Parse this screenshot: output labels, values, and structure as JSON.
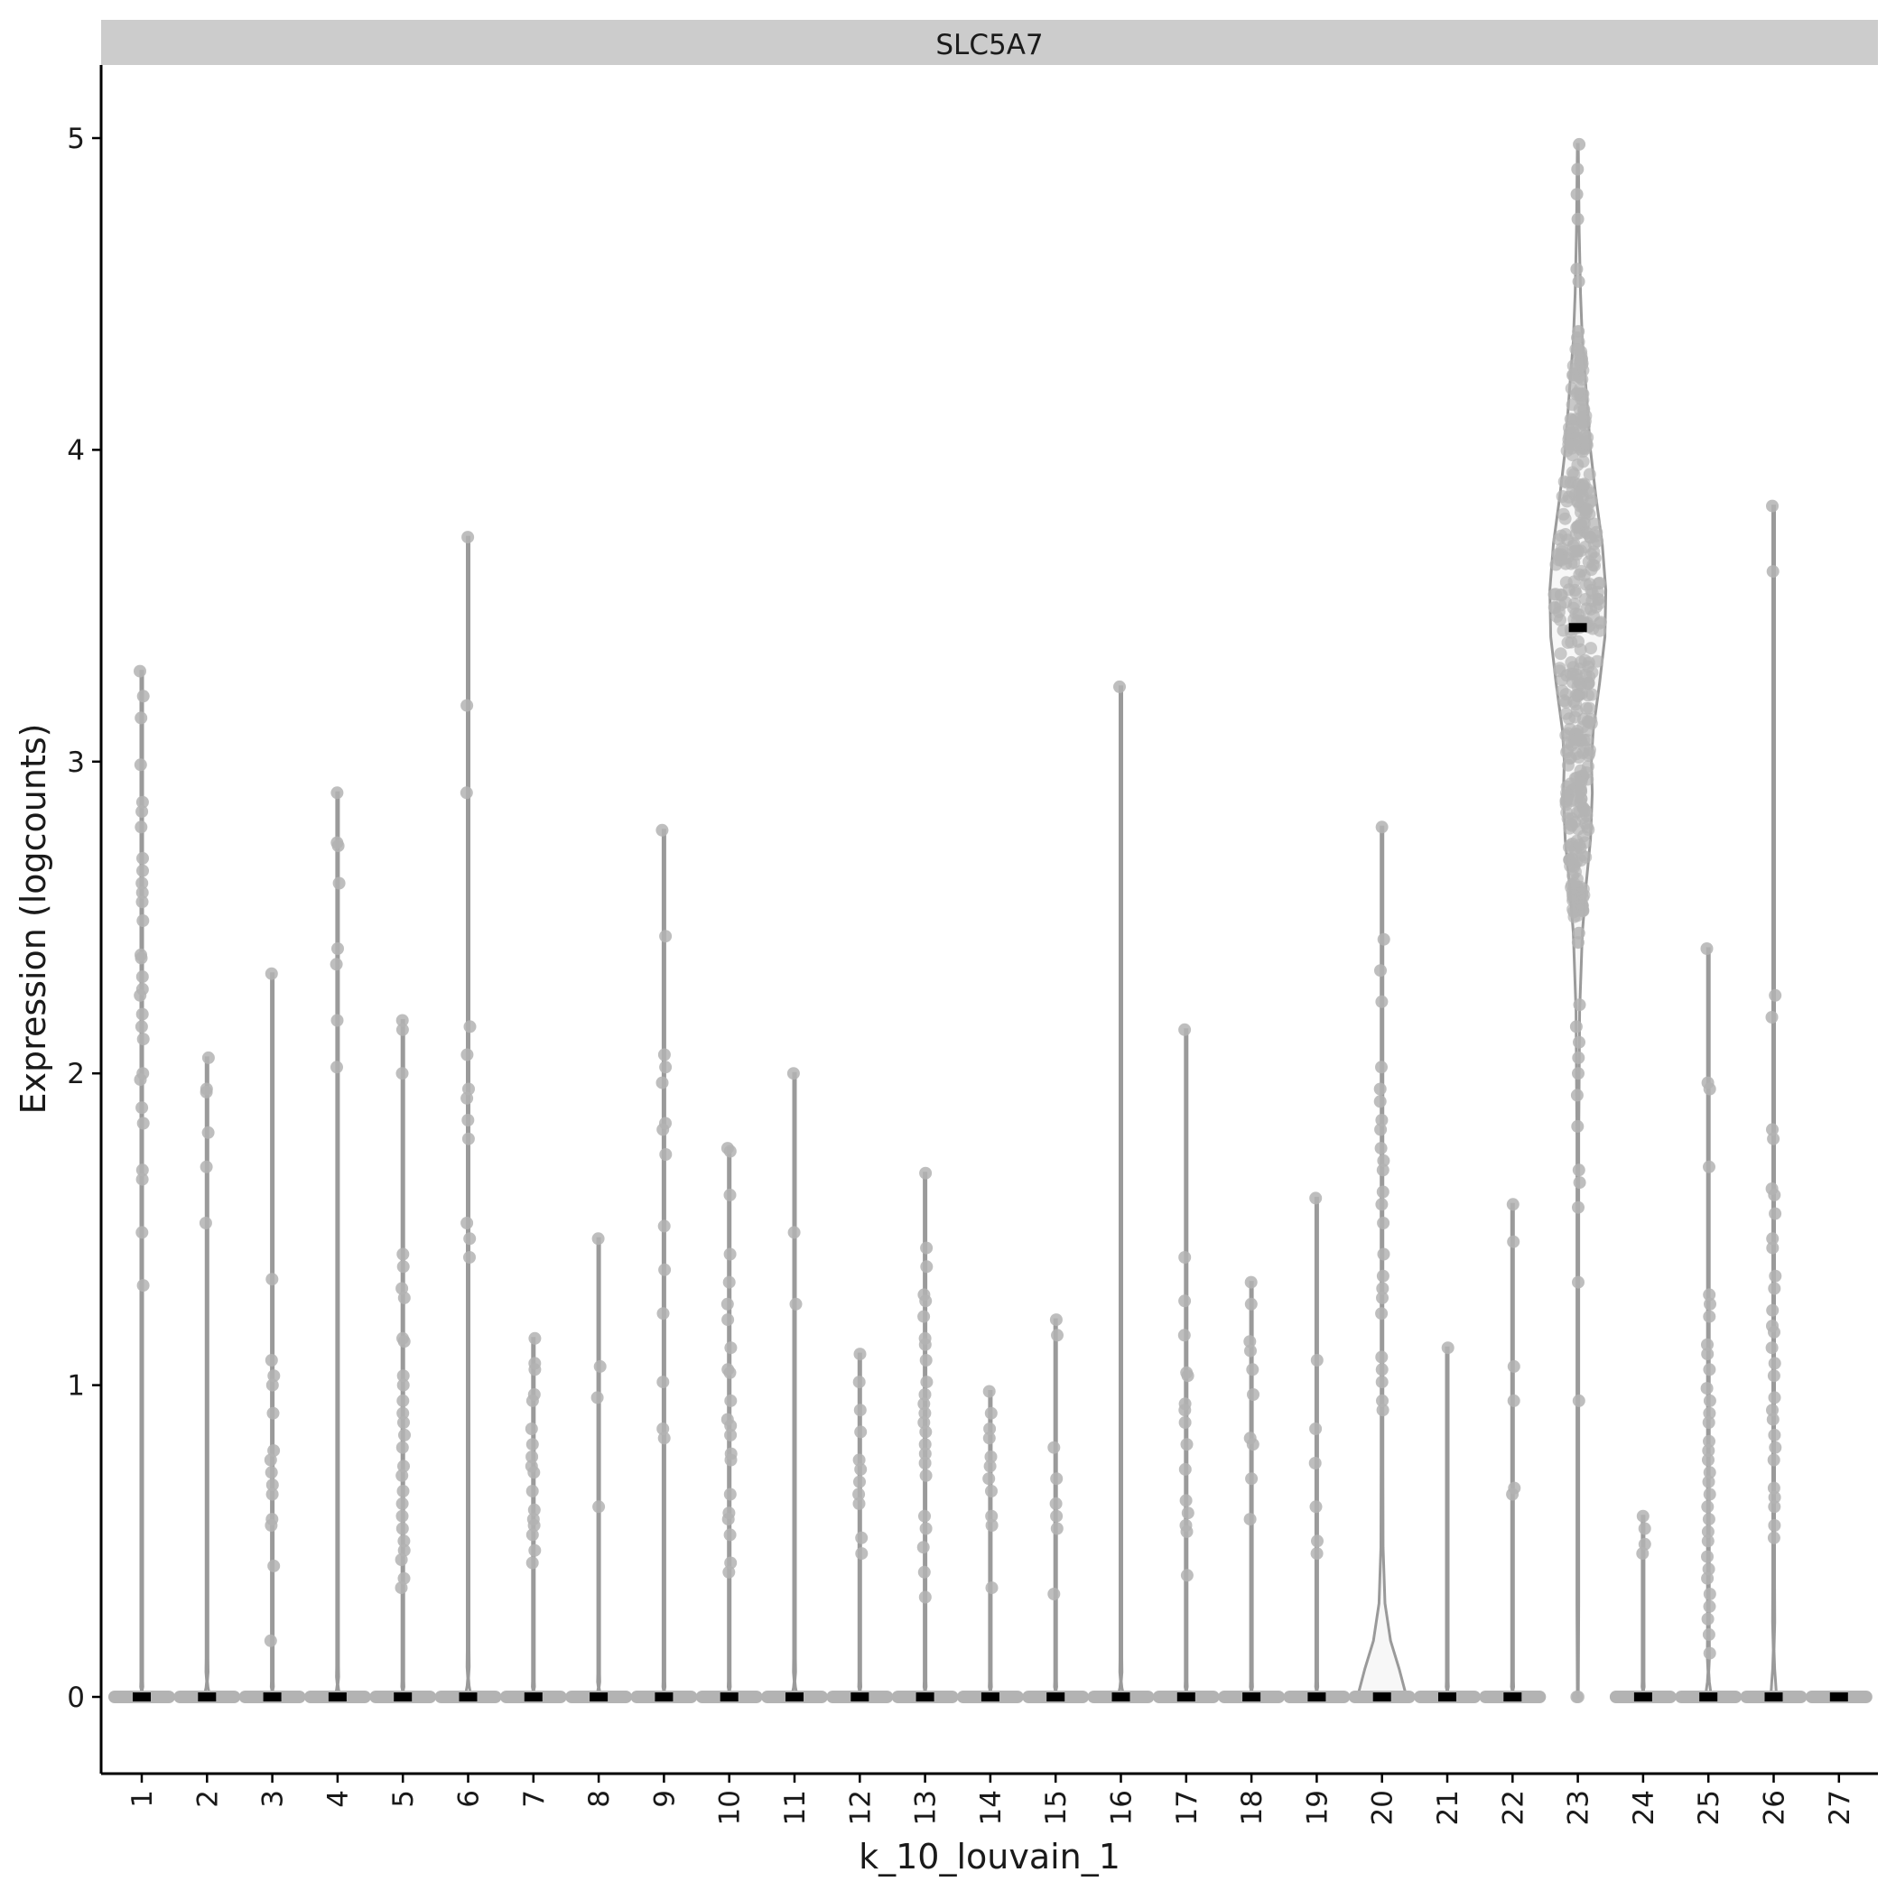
{
  "chart_data": {
    "type": "violin",
    "title": "SLC5A7",
    "xlabel": "k_10_louvain_1",
    "ylabel": "Expression (logcounts)",
    "ylim": [
      -0.25,
      5.25
    ],
    "yticks": [
      0,
      1,
      2,
      3,
      4,
      5
    ],
    "grid": false,
    "colors": {
      "violin": "#9a9a9a",
      "points": "#b3b3b3",
      "median": "#000000",
      "strip": "#cccccc"
    },
    "categories": [
      "1",
      "2",
      "3",
      "4",
      "5",
      "6",
      "7",
      "8",
      "9",
      "10",
      "11",
      "12",
      "13",
      "14",
      "15",
      "16",
      "17",
      "18",
      "19",
      "20",
      "21",
      "22",
      "23",
      "24",
      "25",
      "26",
      "27"
    ],
    "max": [
      3.29,
      2.05,
      2.32,
      2.9,
      2.17,
      3.72,
      1.15,
      1.47,
      2.78,
      1.76,
      2.0,
      1.1,
      1.68,
      0.98,
      1.21,
      3.24,
      2.14,
      1.33,
      1.6,
      2.79,
      1.12,
      1.58,
      4.98,
      0.58,
      2.4,
      3.82,
      0
    ],
    "median": [
      0,
      0,
      0,
      0,
      0,
      0,
      0,
      0,
      0,
      0,
      0,
      0,
      0,
      0,
      0,
      0,
      0,
      0,
      0,
      0,
      0,
      0,
      3.43,
      0,
      0,
      0,
      0
    ],
    "nonzero_points": [
      [
        3.29,
        3.21,
        3.14,
        2.99,
        2.87,
        2.84,
        2.79,
        2.69,
        2.65,
        2.61,
        2.58,
        2.55,
        2.49,
        2.38,
        2.37,
        2.31,
        2.27,
        2.25,
        2.19,
        2.15,
        2.11,
        2.0,
        1.98,
        1.89,
        1.84,
        1.69,
        1.66,
        1.49,
        1.32
      ],
      [
        2.05,
        1.95,
        1.94,
        1.81,
        1.7,
        1.52
      ],
      [
        2.32,
        1.34,
        1.08,
        1.03,
        1.0,
        0.91,
        0.79,
        0.76,
        0.72,
        0.68,
        0.65,
        0.57,
        0.55,
        0.42,
        0.18
      ],
      [
        2.9,
        2.74,
        2.73,
        2.61,
        2.4,
        2.35,
        2.17,
        2.02
      ],
      [
        2.17,
        2.14,
        2.0,
        1.42,
        1.38,
        1.31,
        1.28,
        1.15,
        1.14,
        1.03,
        1.0,
        0.95,
        0.91,
        0.88,
        0.84,
        0.8,
        0.74,
        0.71,
        0.66,
        0.62,
        0.58,
        0.54,
        0.5,
        0.47,
        0.44,
        0.38,
        0.35
      ],
      [
        3.72,
        3.18,
        2.9,
        2.15,
        2.06,
        1.95,
        1.92,
        1.85,
        1.79,
        1.52,
        1.47,
        1.41
      ],
      [
        1.15,
        1.07,
        1.05,
        0.97,
        0.95,
        0.86,
        0.81,
        0.77,
        0.74,
        0.72,
        0.66,
        0.6,
        0.57,
        0.55,
        0.52,
        0.47,
        0.43
      ],
      [
        1.47,
        1.06,
        0.96,
        0.61
      ],
      [
        2.78,
        2.44,
        2.06,
        2.02,
        1.97,
        1.84,
        1.82,
        1.74,
        1.51,
        1.37,
        1.23,
        1.01,
        0.86,
        0.83
      ],
      [
        1.76,
        1.75,
        1.61,
        1.42,
        1.33,
        1.26,
        1.21,
        1.12,
        1.05,
        1.04,
        0.95,
        0.89,
        0.87,
        0.84,
        0.78,
        0.76,
        0.65,
        0.59,
        0.57,
        0.52,
        0.43,
        0.4
      ],
      [
        2.0,
        1.49,
        1.26
      ],
      [
        1.1,
        1.01,
        0.92,
        0.85,
        0.76,
        0.73,
        0.69,
        0.65,
        0.62,
        0.51,
        0.46
      ],
      [
        1.68,
        1.44,
        1.38,
        1.29,
        1.27,
        1.22,
        1.15,
        1.13,
        1.08,
        1.01,
        0.97,
        0.94,
        0.91,
        0.88,
        0.85,
        0.81,
        0.78,
        0.75,
        0.71,
        0.58,
        0.54,
        0.48,
        0.4,
        0.32
      ],
      [
        0.98,
        0.91,
        0.86,
        0.83,
        0.77,
        0.74,
        0.7,
        0.66,
        0.58,
        0.55,
        0.35
      ],
      [
        1.21,
        1.16,
        0.8,
        0.7,
        0.62,
        0.58,
        0.54,
        0.33
      ],
      [
        3.24
      ],
      [
        2.14,
        1.41,
        1.27,
        1.16,
        1.04,
        1.03,
        0.94,
        0.92,
        0.88,
        0.81,
        0.73,
        0.63,
        0.59,
        0.55,
        0.53,
        0.39
      ],
      [
        1.33,
        1.26,
        1.14,
        1.11,
        1.05,
        0.97,
        0.83,
        0.81,
        0.7,
        0.57
      ],
      [
        1.6,
        1.08,
        0.86,
        0.75,
        0.61,
        0.5,
        0.46
      ],
      [
        2.79,
        2.43,
        2.33,
        2.23,
        2.02,
        1.95,
        1.91,
        1.85,
        1.82,
        1.76,
        1.72,
        1.69,
        1.62,
        1.58,
        1.52,
        1.42,
        1.35,
        1.31,
        1.28,
        1.23,
        1.09,
        1.05,
        1.01,
        0.95,
        0.92
      ],
      [
        1.12
      ],
      [
        1.58,
        1.46,
        1.06,
        0.95,
        0.67,
        0.65
      ],
      [],
      [
        0.58,
        0.54,
        0.49,
        0.46
      ],
      [
        2.4,
        1.97,
        1.95,
        1.7,
        1.29,
        1.26,
        1.22,
        1.13,
        1.1,
        1.05,
        0.99,
        0.95,
        0.91,
        0.88,
        0.82,
        0.79,
        0.76,
        0.72,
        0.69,
        0.65,
        0.61,
        0.57,
        0.53,
        0.5,
        0.45,
        0.41,
        0.38,
        0.33,
        0.29,
        0.25,
        0.2,
        0.14
      ],
      [
        3.82,
        3.61,
        2.25,
        2.18,
        1.82,
        1.79,
        1.63,
        1.61,
        1.55,
        1.47,
        1.44,
        1.35,
        1.31,
        1.24,
        1.19,
        1.17,
        1.12,
        1.07,
        1.03,
        0.96,
        0.92,
        0.89,
        0.84,
        0.8,
        0.76,
        0.67,
        0.64,
        0.61,
        0.55,
        0.51
      ],
      []
    ],
    "violin_width_at_zero": [
      0.1,
      0.1,
      0.1,
      0.1,
      0.1,
      0.1,
      0.1,
      0.1,
      0.1,
      0.1,
      0.1,
      0.1,
      0.1,
      0.1,
      0.1,
      0.1,
      0.1,
      0.1,
      0.1,
      0.85,
      0.1,
      0.1,
      0.02,
      0.1,
      0.1,
      0.1,
      0.1
    ],
    "zero_bulge": [
      0.02,
      0.05,
      0.02,
      0.04,
      0.02,
      0.06,
      0.02,
      0.03,
      0.02,
      0.02,
      0.05,
      0.02,
      0.02,
      0.02,
      0.02,
      0.05,
      0.02,
      0.02,
      0.02,
      0.3,
      0.02,
      0.02,
      0,
      0.02,
      0.08,
      0.15,
      0
    ]
  }
}
